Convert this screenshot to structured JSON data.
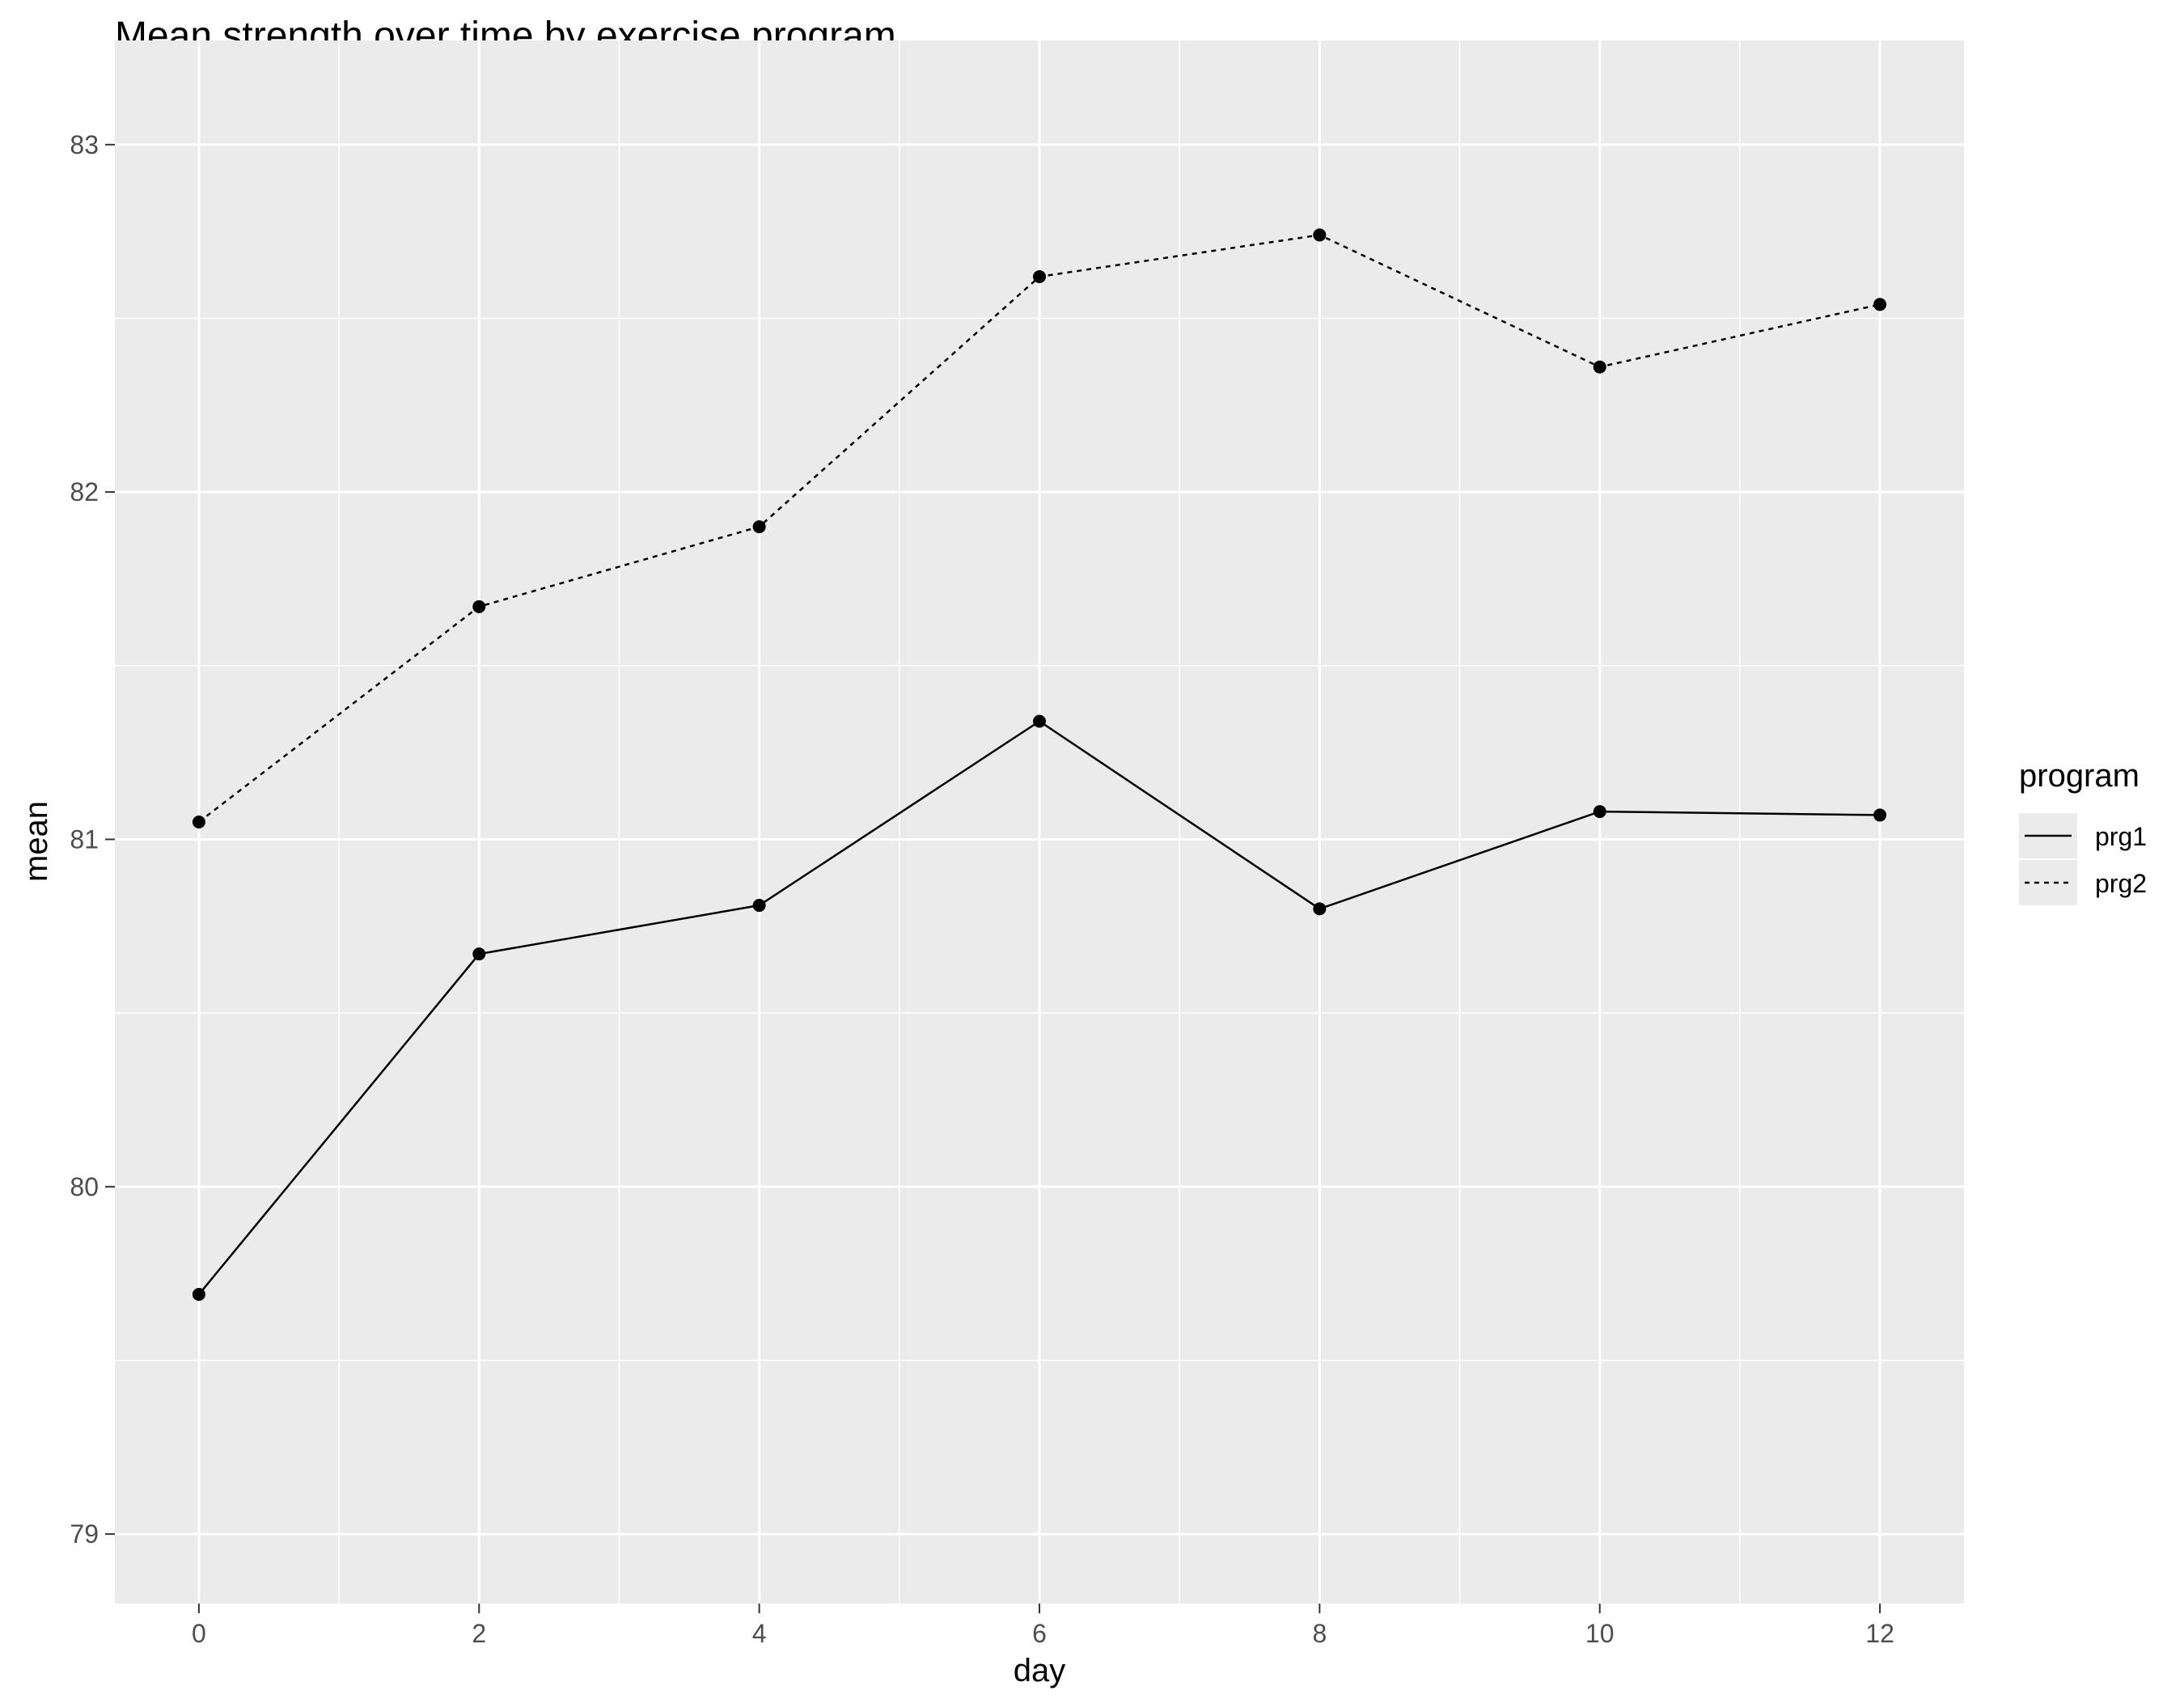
{
  "chart_data": {
    "type": "line",
    "title": "Mean strength over time by exercise program",
    "xlabel": "day",
    "ylabel": "mean",
    "x": [
      0,
      2,
      4,
      6,
      8,
      10,
      12
    ],
    "xticks": [
      "0",
      "2",
      "4",
      "6",
      "8",
      "10",
      "12"
    ],
    "yticks": [
      "79",
      "80",
      "81",
      "82",
      "83"
    ],
    "xlim": [
      -0.6,
      12.6
    ],
    "ylim": [
      78.8,
      83.3
    ],
    "grid": true,
    "legend": {
      "title": "program",
      "placement": "right"
    },
    "series": [
      {
        "name": "prg1",
        "line_style": "solid",
        "values": [
          79.69,
          80.67,
          80.81,
          81.34,
          80.8,
          81.08,
          81.07
        ]
      },
      {
        "name": "prg2",
        "line_style": "dotted",
        "values": [
          81.05,
          81.67,
          81.9,
          82.62,
          82.74,
          82.36,
          82.54
        ]
      }
    ],
    "colors": {
      "panel": "#ebebeb",
      "grid": "#ffffff",
      "line": "#000000",
      "tick_text": "#4d4d4d",
      "tick_mark": "#333333"
    }
  }
}
